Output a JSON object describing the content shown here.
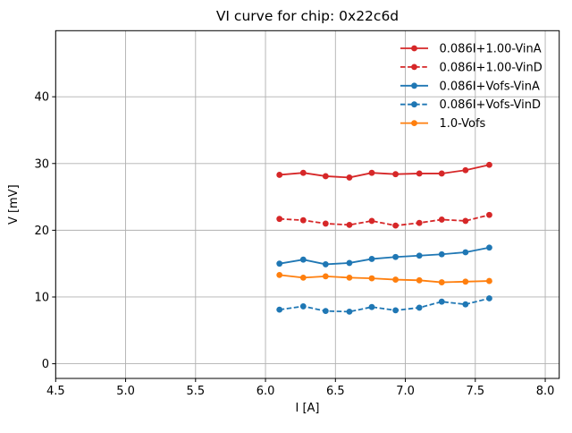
{
  "figure": {
    "title": "VI curve for chip: 0x22c6d",
    "xlabel": "I [A]",
    "ylabel": "V [mV]"
  },
  "chart_data": {
    "type": "line",
    "title": "VI curve for chip: 0x22c6d",
    "xlabel": "I [A]",
    "ylabel": "V [mV]",
    "xlim": [
      4.5,
      8.1
    ],
    "ylim": [
      -2.2,
      49.9
    ],
    "xticks": [
      4.5,
      5.0,
      5.5,
      6.0,
      6.5,
      7.0,
      7.5,
      8.0
    ],
    "xtick_labels": [
      "4.5",
      "5.0",
      "5.5",
      "6.0",
      "6.5",
      "7.0",
      "7.5",
      "8.0"
    ],
    "yticks": [
      0,
      10,
      20,
      30,
      40
    ],
    "ytick_labels": [
      "0",
      "10",
      "20",
      "30",
      "40"
    ],
    "grid": true,
    "grid_color": "#b0b0b0",
    "legend_position": "upper right",
    "legend_frame": false,
    "x": [
      6.1,
      6.27,
      6.43,
      6.6,
      6.76,
      6.93,
      7.1,
      7.26,
      7.43,
      7.6
    ],
    "series": [
      {
        "name": "0.086I+1.00-VinA",
        "color": "#d62728",
        "linestyle": "solid",
        "marker": "circle",
        "values": [
          28.3,
          28.6,
          28.1,
          27.9,
          28.6,
          28.4,
          28.5,
          28.5,
          29.0,
          29.8
        ]
      },
      {
        "name": "0.086I+1.00-VinD",
        "color": "#d62728",
        "linestyle": "dashed",
        "marker": "circle",
        "values": [
          21.7,
          21.5,
          21.0,
          20.8,
          21.4,
          20.7,
          21.1,
          21.6,
          21.4,
          22.3
        ]
      },
      {
        "name": "0.086I+Vofs-VinA",
        "color": "#1f77b4",
        "linestyle": "solid",
        "marker": "circle",
        "values": [
          15.0,
          15.6,
          14.9,
          15.1,
          15.7,
          16.0,
          16.2,
          16.4,
          16.7,
          17.4
        ]
      },
      {
        "name": "0.086I+Vofs-VinD",
        "color": "#1f77b4",
        "linestyle": "dashed",
        "marker": "circle",
        "values": [
          8.1,
          8.6,
          7.9,
          7.8,
          8.5,
          8.0,
          8.4,
          9.3,
          8.9,
          9.8
        ]
      },
      {
        "name": "1.0-Vofs",
        "color": "#ff7f0e",
        "linestyle": "solid",
        "marker": "circle",
        "values": [
          13.3,
          12.9,
          13.1,
          12.9,
          12.8,
          12.6,
          12.5,
          12.2,
          12.3,
          12.4
        ]
      }
    ]
  }
}
